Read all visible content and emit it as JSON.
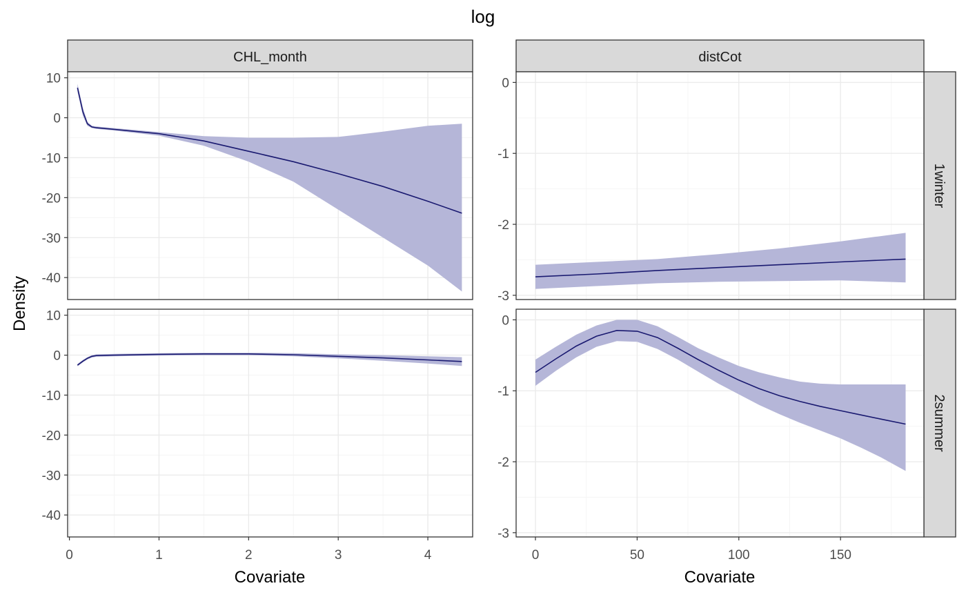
{
  "figure": {
    "title": "log",
    "xlabel": "Covariate",
    "ylabel": "Density"
  },
  "colors": {
    "line": "#191970",
    "band": "#b5b6d8",
    "strip_fill": "#d9d9d9",
    "grid_major": "#ebebeb",
    "grid_minor": "#f5f5f5",
    "border": "#333333",
    "tick_text": "#4d4d4d"
  },
  "chart_data": [
    {
      "type": "line",
      "column": "CHL_month",
      "row": "1winter",
      "xlim": [
        -0.02,
        4.5
      ],
      "ylim": [
        -45.5,
        11.5
      ],
      "xticks": [
        0,
        1,
        2,
        3,
        4
      ],
      "yticks": [
        10,
        0,
        -10,
        -20,
        -30,
        -40
      ],
      "x": [
        0.09,
        0.12,
        0.15,
        0.2,
        0.25,
        0.3,
        0.5,
        1.0,
        1.5,
        2.0,
        2.5,
        3.0,
        3.5,
        4.0,
        4.38
      ],
      "y": [
        7.5,
        4.5,
        1.5,
        -1.5,
        -2.3,
        -2.5,
        -2.9,
        -4.0,
        -5.8,
        -8.4,
        -11.0,
        -14.0,
        -17.2,
        -20.9,
        -23.9
      ],
      "lower": [
        6.5,
        3.5,
        0.5,
        -2.0,
        -2.6,
        -2.8,
        -3.2,
        -4.5,
        -7.0,
        -11.0,
        -16.0,
        -23.0,
        -30.0,
        -37.0,
        -43.5
      ],
      "upper": [
        8.5,
        5.5,
        2.5,
        -1.0,
        -2.0,
        -2.2,
        -2.6,
        -3.6,
        -4.6,
        -5.0,
        -5.0,
        -4.8,
        -3.5,
        -2.0,
        -1.5
      ]
    },
    {
      "type": "line",
      "column": "distCot",
      "row": "1winter",
      "xlim": [
        -9.5,
        191
      ],
      "ylim": [
        -3.06,
        0.15
      ],
      "xticks": [
        0,
        50,
        100,
        150
      ],
      "yticks": [
        0,
        -1,
        -2,
        -3
      ],
      "x": [
        0,
        30,
        60,
        90,
        120,
        150,
        182
      ],
      "y": [
        -2.74,
        -2.7,
        -2.65,
        -2.61,
        -2.57,
        -2.53,
        -2.49
      ],
      "lower": [
        -2.91,
        -2.87,
        -2.83,
        -2.81,
        -2.8,
        -2.79,
        -2.82
      ],
      "upper": [
        -2.57,
        -2.53,
        -2.49,
        -2.42,
        -2.34,
        -2.24,
        -2.12
      ]
    },
    {
      "type": "line",
      "column": "CHL_month",
      "row": "2summer",
      "xlim": [
        -0.02,
        4.5
      ],
      "ylim": [
        -45.5,
        11.5
      ],
      "xticks": [
        0,
        1,
        2,
        3,
        4
      ],
      "yticks": [
        10,
        0,
        -10,
        -20,
        -30,
        -40
      ],
      "x": [
        0.09,
        0.15,
        0.2,
        0.25,
        0.3,
        0.5,
        1.0,
        1.5,
        2.0,
        2.5,
        3.0,
        3.5,
        4.0,
        4.38
      ],
      "y": [
        -2.5,
        -1.5,
        -0.8,
        -0.3,
        -0.1,
        0.0,
        0.2,
        0.3,
        0.3,
        0.1,
        -0.3,
        -0.7,
        -1.2,
        -1.6
      ],
      "lower": [
        -2.8,
        -1.8,
        -1.1,
        -0.6,
        -0.4,
        -0.3,
        -0.1,
        0.0,
        0.0,
        -0.3,
        -0.8,
        -1.4,
        -2.1,
        -2.7
      ],
      "upper": [
        -2.2,
        -1.2,
        -0.5,
        0.0,
        0.2,
        0.3,
        0.5,
        0.6,
        0.6,
        0.5,
        0.2,
        0.0,
        -0.3,
        -0.5
      ]
    },
    {
      "type": "line",
      "column": "distCot",
      "row": "2summer",
      "xlim": [
        -9.5,
        191
      ],
      "ylim": [
        -3.06,
        0.15
      ],
      "xticks": [
        0,
        50,
        100,
        150
      ],
      "yticks": [
        0,
        -1,
        -2,
        -3
      ],
      "x": [
        0,
        10,
        20,
        30,
        40,
        50,
        60,
        70,
        80,
        90,
        100,
        110,
        120,
        130,
        140,
        150,
        160,
        170,
        182
      ],
      "y": [
        -0.74,
        -0.55,
        -0.37,
        -0.23,
        -0.15,
        -0.16,
        -0.25,
        -0.4,
        -0.56,
        -0.71,
        -0.85,
        -0.97,
        -1.07,
        -1.15,
        -1.22,
        -1.28,
        -1.34,
        -1.4,
        -1.47
      ],
      "lower": [
        -0.93,
        -0.72,
        -0.53,
        -0.38,
        -0.3,
        -0.31,
        -0.41,
        -0.56,
        -0.73,
        -0.9,
        -1.05,
        -1.2,
        -1.33,
        -1.45,
        -1.56,
        -1.67,
        -1.8,
        -1.94,
        -2.13
      ],
      "upper": [
        -0.56,
        -0.38,
        -0.21,
        -0.08,
        0.0,
        0.0,
        -0.09,
        -0.24,
        -0.4,
        -0.53,
        -0.65,
        -0.74,
        -0.81,
        -0.87,
        -0.9,
        -0.91,
        -0.91,
        -0.91,
        -0.91
      ]
    }
  ]
}
